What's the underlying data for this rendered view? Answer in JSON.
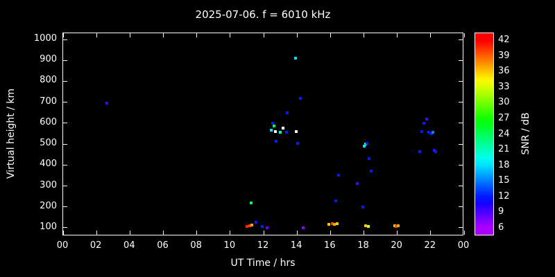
{
  "chart": {
    "title": "2025-07-06. f = 6010 kHz",
    "xlabel": "UT Time / hrs",
    "ylabel": "Virtual height / km",
    "colorbar_label": "SNR / dB",
    "background_color": "#000000",
    "foreground_color": "#ffffff"
  },
  "chart_data": {
    "type": "scatter",
    "title": "2025-07-06. f = 6010 kHz",
    "xlabel": "UT Time / hrs",
    "ylabel": "Virtual height / km",
    "x_range": [
      0,
      24
    ],
    "y_range": [
      60,
      1030
    ],
    "x_tick_values": [
      0,
      2,
      4,
      6,
      8,
      10,
      12,
      14,
      16,
      18,
      20,
      22,
      24
    ],
    "x_tick_labels": [
      "00",
      "02",
      "04",
      "06",
      "08",
      "10",
      "12",
      "14",
      "16",
      "18",
      "20",
      "22",
      "00"
    ],
    "y_ticks": [
      100,
      200,
      300,
      400,
      500,
      600,
      700,
      800,
      900,
      1000
    ],
    "colorbar": {
      "label": "SNR / dB",
      "min": 4.5,
      "max": 43.5,
      "ticks": [
        6,
        9,
        12,
        15,
        18,
        21,
        24,
        27,
        30,
        33,
        36,
        39,
        42
      ]
    },
    "points": [
      {
        "x": 2.62,
        "y": 695,
        "snr": 9
      },
      {
        "x": 11.0,
        "y": 105,
        "snr": 41
      },
      {
        "x": 11.15,
        "y": 110,
        "snr": 40
      },
      {
        "x": 11.3,
        "y": 112,
        "snr": 37
      },
      {
        "x": 11.25,
        "y": 220,
        "snr": 24
      },
      {
        "x": 11.55,
        "y": 125,
        "snr": 12
      },
      {
        "x": 11.9,
        "y": 108,
        "snr": 12
      },
      {
        "x": 12.2,
        "y": 100,
        "snr": 8
      },
      {
        "x": 12.45,
        "y": 565,
        "snr": 18
      },
      {
        "x": 12.55,
        "y": 600,
        "snr": 12
      },
      {
        "x": 12.62,
        "y": 585,
        "snr": 24
      },
      {
        "x": 12.7,
        "y": 560,
        "snr": null,
        "color": "#ffffff"
      },
      {
        "x": 12.75,
        "y": 515,
        "snr": 12
      },
      {
        "x": 13.0,
        "y": 555,
        "snr": 21
      },
      {
        "x": 13.15,
        "y": 575,
        "snr": null,
        "color": "#ffffff"
      },
      {
        "x": 13.35,
        "y": 555,
        "snr": 12
      },
      {
        "x": 13.4,
        "y": 650,
        "snr": 12
      },
      {
        "x": 13.9,
        "y": 910,
        "snr": 18
      },
      {
        "x": 13.95,
        "y": 560,
        "snr": null,
        "color": "#ffffff"
      },
      {
        "x": 14.05,
        "y": 505,
        "snr": 12
      },
      {
        "x": 14.2,
        "y": 720,
        "snr": 12
      },
      {
        "x": 14.35,
        "y": 100,
        "snr": 7
      },
      {
        "x": 15.9,
        "y": 115,
        "snr": 36
      },
      {
        "x": 16.1,
        "y": 118,
        "snr": 40
      },
      {
        "x": 16.25,
        "y": 115,
        "snr": 37
      },
      {
        "x": 16.4,
        "y": 118,
        "snr": 36
      },
      {
        "x": 16.3,
        "y": 230,
        "snr": 12
      },
      {
        "x": 16.5,
        "y": 350,
        "snr": 12
      },
      {
        "x": 17.6,
        "y": 310,
        "snr": 9
      },
      {
        "x": 17.95,
        "y": 200,
        "snr": 12
      },
      {
        "x": 18.0,
        "y": 490,
        "snr": 18
      },
      {
        "x": 18.1,
        "y": 500,
        "snr": 21
      },
      {
        "x": 18.18,
        "y": 505,
        "snr": 12
      },
      {
        "x": 18.3,
        "y": 430,
        "snr": 12
      },
      {
        "x": 18.45,
        "y": 370,
        "snr": 12
      },
      {
        "x": 18.1,
        "y": 110,
        "snr": 36
      },
      {
        "x": 18.25,
        "y": 108,
        "snr": 33
      },
      {
        "x": 19.85,
        "y": 110,
        "snr": 36
      },
      {
        "x": 19.95,
        "y": 108,
        "snr": 40
      },
      {
        "x": 20.05,
        "y": 110,
        "snr": 37
      },
      {
        "x": 21.35,
        "y": 465,
        "snr": 12
      },
      {
        "x": 21.45,
        "y": 560,
        "snr": 12
      },
      {
        "x": 21.6,
        "y": 600,
        "snr": 12
      },
      {
        "x": 21.75,
        "y": 620,
        "snr": 9
      },
      {
        "x": 21.9,
        "y": 555,
        "snr": 12
      },
      {
        "x": 22.05,
        "y": 550,
        "snr": 12
      },
      {
        "x": 22.15,
        "y": 555,
        "snr": 15
      },
      {
        "x": 22.2,
        "y": 470,
        "snr": 9
      },
      {
        "x": 22.28,
        "y": 465,
        "snr": 12
      }
    ]
  }
}
